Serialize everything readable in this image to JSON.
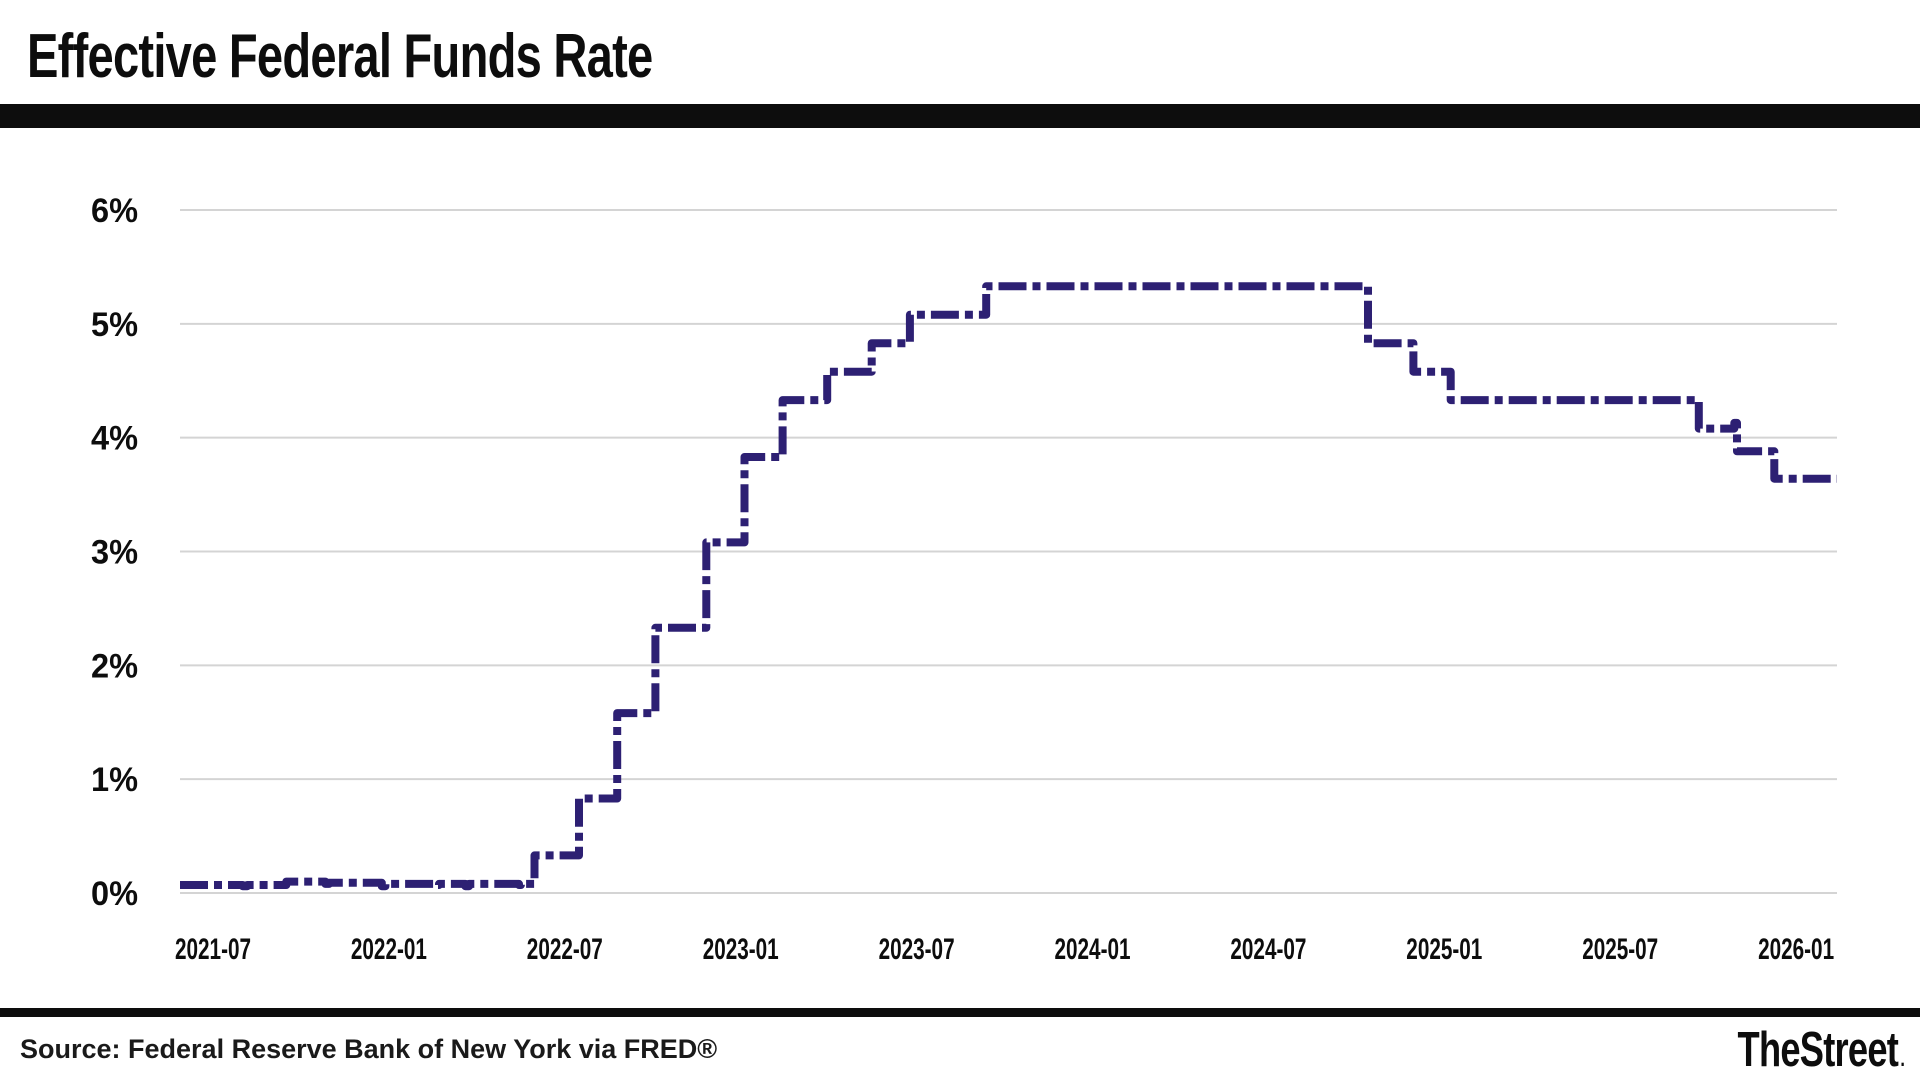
{
  "page": {
    "title": "Effective Federal Funds Rate",
    "source_note": "Source: Federal Reserve Bank of New York via FRED®",
    "brand": "TheStreet",
    "brand_period": "."
  },
  "colors": {
    "line": "#2d2073",
    "grid": "#d4d4d4",
    "divider": "#0d0d0d",
    "text": "#0d0d0d"
  },
  "chart_data": {
    "type": "line",
    "step": true,
    "title": "Effective Federal Funds Rate",
    "xlabel": "",
    "ylabel": "",
    "unit": "percent",
    "grid": "horizontal",
    "legend": "none",
    "ylim": [
      0,
      6.4
    ],
    "y_ticks": [
      0,
      1,
      2,
      3,
      4,
      5,
      6
    ],
    "y_tick_labels": [
      "0%",
      "1%",
      "2%",
      "3%",
      "4%",
      "5%",
      "6%"
    ],
    "x_tick_labels": [
      "2021-07",
      "2022-01",
      "2022-07",
      "2023-01",
      "2023-07",
      "2024-01",
      "2024-07",
      "2025-01",
      "2025-07",
      "2026-01"
    ],
    "x_domain": [
      "2021-02-20",
      "2026-02-17"
    ],
    "line_style": "dash-dot",
    "series": [
      {
        "name": "Effective Federal Funds Rate (%)",
        "points": [
          [
            "2021-02-20",
            0.07
          ],
          [
            "2021-04-30",
            0.06
          ],
          [
            "2021-05-05",
            0.07
          ],
          [
            "2021-06-17",
            0.1
          ],
          [
            "2021-07-30",
            0.08
          ],
          [
            "2021-08-03",
            0.09
          ],
          [
            "2021-09-30",
            0.06
          ],
          [
            "2021-10-04",
            0.08
          ],
          [
            "2021-11-30",
            0.07
          ],
          [
            "2021-12-02",
            0.08
          ],
          [
            "2021-12-31",
            0.06
          ],
          [
            "2022-01-04",
            0.08
          ],
          [
            "2022-02-28",
            0.07
          ],
          [
            "2022-03-02",
            0.08
          ],
          [
            "2022-03-17",
            0.33
          ],
          [
            "2022-05-05",
            0.83
          ],
          [
            "2022-06-16",
            1.58
          ],
          [
            "2022-07-28",
            2.33
          ],
          [
            "2022-09-22",
            3.08
          ],
          [
            "2022-11-03",
            3.83
          ],
          [
            "2022-12-15",
            4.33
          ],
          [
            "2023-02-02",
            4.58
          ],
          [
            "2023-03-23",
            4.83
          ],
          [
            "2023-05-04",
            5.08
          ],
          [
            "2023-07-27",
            5.33
          ],
          [
            "2024-09-19",
            4.83
          ],
          [
            "2024-11-08",
            4.58
          ],
          [
            "2024-12-19",
            4.33
          ],
          [
            "2025-09-18",
            4.08
          ],
          [
            "2025-10-27",
            4.13
          ],
          [
            "2025-10-30",
            3.88
          ],
          [
            "2025-12-10",
            3.64
          ],
          [
            "2026-02-17",
            3.64
          ]
        ]
      }
    ]
  }
}
